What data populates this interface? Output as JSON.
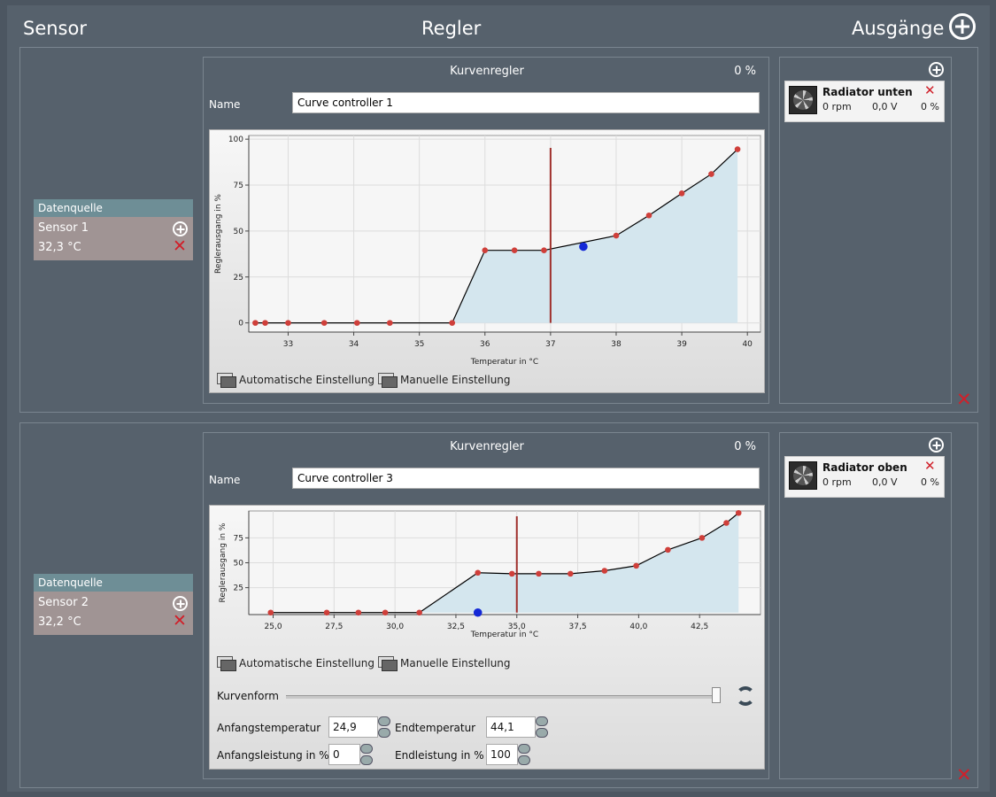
{
  "header": {
    "sensor": "Sensor",
    "regler": "Regler",
    "ausgaenge": "Ausgänge"
  },
  "rows": [
    {
      "datasource": {
        "header": "Datenquelle",
        "name": "Sensor 1",
        "value": "32,3 °C"
      },
      "controller": {
        "title": "Kurvenregler",
        "percent": "0 %",
        "name_label": "Name",
        "name_value": "Curve controller 1",
        "btn_auto": "Automatische Einstellung",
        "btn_manual": "Manuelle Einstellung"
      },
      "output": {
        "name": "Radiator unten",
        "rpm": "0 rpm",
        "voltage": "0,0 V",
        "percent": "0 %"
      }
    },
    {
      "datasource": {
        "header": "Datenquelle",
        "name": "Sensor 2",
        "value": "32,2 °C"
      },
      "controller": {
        "title": "Kurvenregler",
        "percent": "0 %",
        "name_label": "Name",
        "name_value": "Curve controller 3",
        "btn_auto": "Automatische Einstellung",
        "btn_manual": "Manuelle Einstellung",
        "curve_label": "Kurvenform",
        "start_temp_label": "Anfangstemperatur",
        "start_temp": "24,9",
        "end_temp_label": "Endtemperatur",
        "end_temp": "44,1",
        "start_power_label": "Anfangsleistung in %",
        "start_power": "0",
        "end_power_label": "Endleistung in %",
        "end_power": "100"
      },
      "output": {
        "name": "Radiator oben",
        "rpm": "0 rpm",
        "voltage": "0,0 V",
        "percent": "0 %"
      }
    }
  ],
  "chart_data": [
    {
      "type": "area",
      "xlabel": "Temperatur in °C",
      "ylabel": "Reglerausgang in %",
      "xlim": [
        32.4,
        40.2
      ],
      "ylim": [
        -5,
        102
      ],
      "xticks": [
        33,
        34,
        35,
        36,
        37,
        38,
        39,
        40
      ],
      "xtick_labels": [
        "33",
        "34",
        "35",
        "36",
        "37",
        "38",
        "39",
        "40"
      ],
      "yticks": [
        0,
        25,
        50,
        75,
        100
      ],
      "ytick_labels": [
        "0",
        "25",
        "50",
        "75",
        "100"
      ],
      "points": [
        [
          32.5,
          0
        ],
        [
          32.65,
          0
        ],
        [
          33.0,
          0
        ],
        [
          33.55,
          0
        ],
        [
          34.05,
          0
        ],
        [
          34.55,
          0
        ],
        [
          35.5,
          0
        ],
        [
          36.0,
          39.5
        ],
        [
          36.45,
          39.5
        ],
        [
          36.9,
          39.5
        ],
        [
          38.0,
          47.5
        ],
        [
          38.5,
          58.5
        ],
        [
          39.0,
          70.5
        ],
        [
          39.45,
          81
        ],
        [
          39.85,
          94.5
        ]
      ],
      "current_temperature": 37.0,
      "current_point": [
        37.5,
        41.5
      ],
      "grid": true,
      "colors": {
        "fill": "#d4e6ee",
        "line": "#000000",
        "point": "#cf3f3a",
        "current_line": "#a0302c",
        "current_point": "#1428d6"
      }
    },
    {
      "type": "area",
      "xlabel": "Temperatur in °C",
      "ylabel": "Reglerausgang in %",
      "xlim": [
        24.0,
        45.0
      ],
      "ylim": [
        -2,
        102
      ],
      "xticks": [
        25,
        27.5,
        30,
        32.5,
        35,
        37.5,
        40,
        42.5
      ],
      "xtick_labels": [
        "25,0",
        "27,5",
        "30,0",
        "32,5",
        "35,0",
        "37,5",
        "40,0",
        "42,5"
      ],
      "yticks": [
        25,
        50,
        75
      ],
      "ytick_labels": [
        "25",
        "50",
        "75"
      ],
      "points": [
        [
          24.9,
          0
        ],
        [
          27.2,
          0
        ],
        [
          28.5,
          0
        ],
        [
          29.6,
          0
        ],
        [
          31.0,
          0
        ],
        [
          33.4,
          40
        ],
        [
          34.8,
          39
        ],
        [
          35.9,
          39
        ],
        [
          37.2,
          39
        ],
        [
          38.6,
          42
        ],
        [
          39.9,
          47
        ],
        [
          41.2,
          63
        ],
        [
          42.6,
          75
        ],
        [
          43.6,
          90
        ],
        [
          44.1,
          100
        ]
      ],
      "current_temperature": 35.0,
      "current_point": [
        33.4,
        0
      ],
      "grid": true,
      "colors": {
        "fill": "#d4e6ee",
        "line": "#000000",
        "point": "#cf3f3a",
        "current_line": "#a0302c",
        "current_point": "#1428d6"
      }
    }
  ]
}
